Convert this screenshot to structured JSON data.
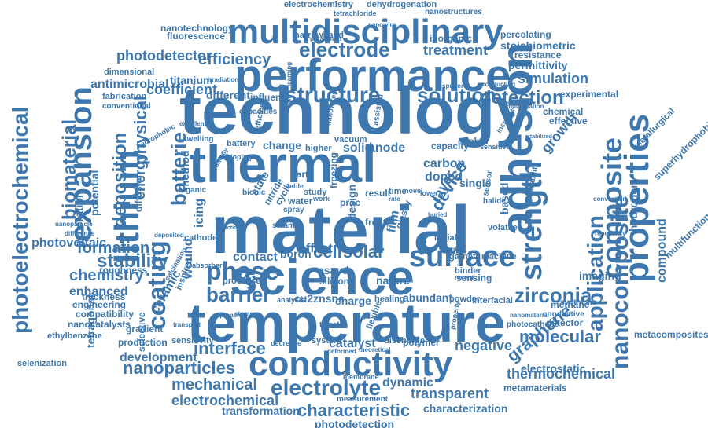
{
  "word_cloud": {
    "color": "#3d77ad",
    "words": [
      {
        "text": "technology"
      },
      {
        "text": "temperature"
      },
      {
        "text": "material"
      },
      {
        "text": "performance"
      },
      {
        "text": "multidisciplinary"
      },
      {
        "text": "science"
      },
      {
        "text": "thermal"
      },
      {
        "text": "conductivity"
      },
      {
        "text": "properties"
      },
      {
        "text": "adhesion"
      },
      {
        "text": "lithium"
      },
      {
        "text": "expansion"
      },
      {
        "text": "composite"
      },
      {
        "text": "strength"
      },
      {
        "text": "surface"
      },
      {
        "text": "coating"
      },
      {
        "text": "nanocomposite"
      },
      {
        "text": "application"
      },
      {
        "text": "electrolyte"
      },
      {
        "text": "structure"
      },
      {
        "text": "solution"
      },
      {
        "text": "detection"
      },
      {
        "text": "electrode"
      },
      {
        "text": "zirconia"
      },
      {
        "text": "phase"
      },
      {
        "text": "barrier"
      },
      {
        "text": "interface"
      },
      {
        "text": "nanoparticles"
      },
      {
        "text": "characteristic"
      },
      {
        "text": "mechanical"
      },
      {
        "text": "electrochemical"
      },
      {
        "text": "photoelectrochemical"
      },
      {
        "text": "biomaterial"
      },
      {
        "text": "deposition"
      },
      {
        "text": "physical"
      },
      {
        "text": "batterie"
      },
      {
        "text": "stability"
      },
      {
        "text": "formation"
      },
      {
        "text": "chemistry"
      },
      {
        "text": "photodetector"
      },
      {
        "text": "efficiency"
      },
      {
        "text": "coefficient"
      },
      {
        "text": "treatment"
      },
      {
        "text": "simulation"
      },
      {
        "text": "antimicrobial"
      },
      {
        "text": "development"
      },
      {
        "text": "thermochemical"
      },
      {
        "text": "transparent"
      },
      {
        "text": "characterization"
      },
      {
        "text": "photodetection"
      },
      {
        "text": "transformation"
      },
      {
        "text": "molecular"
      },
      {
        "text": "graphene"
      },
      {
        "text": "negative"
      },
      {
        "text": "dynamic"
      },
      {
        "text": "catalyst"
      },
      {
        "text": "enhanced"
      },
      {
        "text": "energy"
      },
      {
        "text": "ceramic"
      },
      {
        "text": "device"
      },
      {
        "text": "layer"
      },
      {
        "text": "cell"
      },
      {
        "text": "solar"
      },
      {
        "text": "solid"
      },
      {
        "text": "anode"
      },
      {
        "text": "change"
      },
      {
        "text": "carbon"
      },
      {
        "text": "doped"
      },
      {
        "text": "contact"
      },
      {
        "text": "effect"
      },
      {
        "text": "icing"
      },
      {
        "text": "wound"
      },
      {
        "text": "growth"
      },
      {
        "text": "compound"
      },
      {
        "text": "hydrogen"
      },
      {
        "text": "imaging"
      },
      {
        "text": "methane"
      },
      {
        "text": "electrostatic"
      },
      {
        "text": "metamaterials"
      },
      {
        "text": "metacomposites"
      },
      {
        "text": "multifunctional"
      },
      {
        "text": "superhydrophobic"
      },
      {
        "text": "metallurgical"
      },
      {
        "text": "effective"
      },
      {
        "text": "chemical"
      },
      {
        "text": "experimental"
      },
      {
        "text": "permittivity"
      },
      {
        "text": "resistance"
      },
      {
        "text": "stoichiometric"
      },
      {
        "text": "percolating"
      },
      {
        "text": "inorganic"
      },
      {
        "text": "narrowband"
      },
      {
        "text": "fluorescence"
      },
      {
        "text": "nanotechnology"
      },
      {
        "text": "electrochemistry"
      },
      {
        "text": "dehydrogenation"
      },
      {
        "text": "nanostructures"
      },
      {
        "text": "tetrachloride"
      },
      {
        "text": "potassium"
      },
      {
        "text": "dimensional"
      },
      {
        "text": "titanium"
      },
      {
        "text": "fabrication"
      },
      {
        "text": "conventional"
      },
      {
        "text": "different"
      },
      {
        "text": "influence"
      },
      {
        "text": "capacities"
      },
      {
        "text": "photovoltaic"
      },
      {
        "text": "generation"
      },
      {
        "text": "potential"
      },
      {
        "text": "diffusion"
      },
      {
        "text": "method"
      },
      {
        "text": "selenization"
      },
      {
        "text": "nanocatalysts"
      },
      {
        "text": "compatibility"
      },
      {
        "text": "engineering"
      },
      {
        "text": "thickness"
      },
      {
        "text": "ethylbenzene"
      },
      {
        "text": "roughness"
      },
      {
        "text": "tetragonal"
      },
      {
        "text": "production"
      },
      {
        "text": "gradient"
      },
      {
        "text": "selective"
      },
      {
        "text": "sensitivity"
      },
      {
        "text": "cathode"
      },
      {
        "text": "inspired"
      },
      {
        "text": "processes"
      },
      {
        "text": "boron"
      },
      {
        "text": "silicon"
      },
      {
        "text": "esavd"
      },
      {
        "text": "cu2znsns"
      },
      {
        "text": "analysis"
      },
      {
        "text": "charge"
      },
      {
        "text": "healing"
      },
      {
        "text": "abundant"
      },
      {
        "text": "nature"
      },
      {
        "text": "powder"
      },
      {
        "text": "interfacial"
      },
      {
        "text": "sensing"
      },
      {
        "text": "machine"
      },
      {
        "text": "garnet"
      },
      {
        "text": "binder"
      },
      {
        "text": "recent"
      },
      {
        "text": "conductive"
      },
      {
        "text": "synthesis"
      },
      {
        "text": "photocathode"
      },
      {
        "text": "nanomaterial"
      },
      {
        "text": "detector"
      },
      {
        "text": "polymer"
      },
      {
        "text": "system"
      },
      {
        "text": "discharge"
      },
      {
        "text": "decrease"
      },
      {
        "text": "membrane"
      },
      {
        "text": "measurement"
      },
      {
        "text": "capacity"
      },
      {
        "text": "cspbbr"
      },
      {
        "text": "battery"
      },
      {
        "text": "doping"
      },
      {
        "text": "higher"
      },
      {
        "text": "vacuum"
      },
      {
        "text": "earth"
      },
      {
        "text": "freezing"
      },
      {
        "text": "water"
      },
      {
        "text": "nitride"
      },
      {
        "text": "cycle"
      },
      {
        "text": "study"
      },
      {
        "text": "work"
      },
      {
        "text": "state"
      },
      {
        "text": "stable"
      },
      {
        "text": "proc"
      },
      {
        "text": "result"
      },
      {
        "text": "time"
      },
      {
        "text": "rate"
      },
      {
        "text": "lower"
      },
      {
        "text": "novel"
      },
      {
        "text": "design"
      },
      {
        "text": "film"
      },
      {
        "text": "glassy"
      },
      {
        "text": "frost"
      },
      {
        "text": "initial"
      },
      {
        "text": "volatile"
      },
      {
        "text": "single"
      },
      {
        "text": "halide"
      },
      {
        "text": "based"
      },
      {
        "text": "durability"
      },
      {
        "text": "sensor"
      },
      {
        "text": "spray"
      },
      {
        "text": "bionic"
      },
      {
        "text": "organic"
      },
      {
        "text": "steam"
      },
      {
        "text": "swelling"
      },
      {
        "text": "excellent"
      },
      {
        "text": "learning"
      },
      {
        "text": "assisted"
      },
      {
        "text": "nanowires"
      },
      {
        "text": "sensitive"
      },
      {
        "text": "increase"
      },
      {
        "text": "sputtered"
      },
      {
        "text": "modification"
      },
      {
        "text": "conducting"
      },
      {
        "text": "stabilized"
      },
      {
        "text": "convection"
      },
      {
        "text": "repellency"
      },
      {
        "text": "deposited"
      },
      {
        "text": "calcination"
      },
      {
        "text": "absorber"
      },
      {
        "text": "storage"
      },
      {
        "text": "approach"
      },
      {
        "text": "transport"
      },
      {
        "text": "transfer"
      },
      {
        "text": "flexible"
      },
      {
        "text": "deformed"
      },
      {
        "text": "theoretical"
      },
      {
        "text": "property"
      },
      {
        "text": "tuning"
      },
      {
        "text": "nanowire"
      },
      {
        "text": "irradiation"
      },
      {
        "text": "buried"
      },
      {
        "text": "butterfly"
      },
      {
        "text": "efficient"
      },
      {
        "text": "hydrophobic"
      },
      {
        "text": "nanoparticle"
      },
      {
        "text": "difference"
      },
      {
        "text": "practical"
      }
    ]
  }
}
